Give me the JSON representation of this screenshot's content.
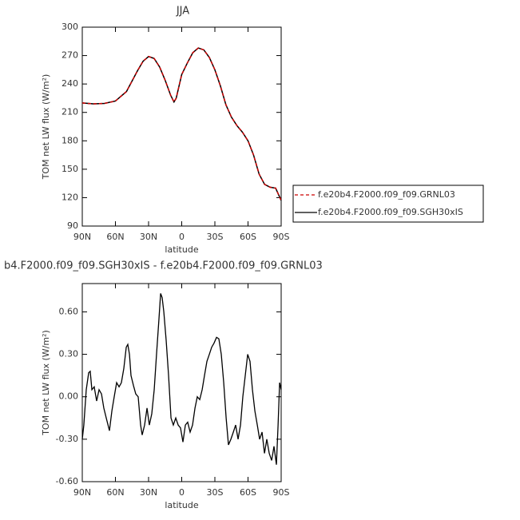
{
  "chart_data": [
    {
      "type": "line",
      "title": "JJA",
      "xlabel": "latitude",
      "ylabel": "TOM net LW flux (W/m²)",
      "xlim": [
        90,
        -90
      ],
      "xticks": [
        {
          "value": 90,
          "label": "90N"
        },
        {
          "value": 60,
          "label": "60N"
        },
        {
          "value": 30,
          "label": "30N"
        },
        0,
        {
          "value": -30,
          "label": "30S"
        },
        {
          "value": -60,
          "label": "60S"
        },
        {
          "value": -90,
          "label": "90S"
        }
      ],
      "ylim": [
        90,
        300
      ],
      "yticks": [
        90,
        120,
        150,
        180,
        210,
        240,
        270,
        300
      ],
      "x": [
        90,
        80,
        70,
        60,
        50,
        40,
        35,
        30,
        25,
        20,
        15,
        10,
        7,
        5,
        0,
        -5,
        -10,
        -15,
        -20,
        -25,
        -30,
        -35,
        -40,
        -45,
        -50,
        -55,
        -60,
        -65,
        -70,
        -75,
        -80,
        -85,
        -90
      ],
      "series": [
        {
          "name": "f.e20b4.F2000.f09_f09.GRNL03",
          "color": "#cc0000",
          "style": "dashed",
          "values": [
            220,
            219,
            219.5,
            222,
            232,
            254,
            264,
            269,
            267,
            258,
            244,
            228,
            221,
            225,
            250,
            262,
            273,
            278,
            276,
            268,
            255,
            238,
            218,
            205,
            196,
            189,
            180,
            165,
            145,
            134,
            131,
            130,
            117
          ]
        },
        {
          "name": "f.e20b4.F2000.f09_f09.SGH30xIS",
          "color": "#000000",
          "style": "solid",
          "values": [
            220,
            219,
            219.5,
            222,
            232,
            254,
            264,
            269,
            267,
            258,
            244,
            228,
            221,
            225,
            250,
            262,
            273,
            278,
            276,
            268,
            255,
            238,
            218,
            205,
            196,
            189,
            180,
            165,
            145,
            134,
            131,
            130,
            117
          ]
        }
      ],
      "legend": "right"
    },
    {
      "type": "line",
      "title": "b4.F2000.f09_f09.SGH30xIS - f.e20b4.F2000.f09_f09.GRNL03",
      "xlabel": "latitude",
      "ylabel": "TOM net LW flux (W/m²)",
      "xlim": [
        90,
        -90
      ],
      "xticks": [
        {
          "value": 90,
          "label": "90N"
        },
        {
          "value": 60,
          "label": "60N"
        },
        {
          "value": 30,
          "label": "30N"
        },
        0,
        {
          "value": -30,
          "label": "30S"
        },
        {
          "value": -60,
          "label": "60S"
        },
        {
          "value": -90,
          "label": "90S"
        }
      ],
      "ylim": [
        -0.6,
        0.8
      ],
      "yticks": [
        {
          "value": -0.6,
          "label": "-0.60"
        },
        {
          "value": -0.3,
          "label": "-0.30"
        },
        {
          "value": 0,
          "label": "0.00"
        },
        {
          "value": 0.3,
          "label": "0.30"
        },
        {
          "value": 0.6,
          "label": "0.60"
        }
      ],
      "color": "#000000",
      "x": [
        90,
        88.6,
        86.4,
        84.2,
        82.8,
        81.3,
        79.2,
        77,
        74.8,
        72.6,
        70.5,
        68.3,
        65.4,
        63.2,
        61.1,
        58.9,
        56.7,
        54.6,
        52.4,
        50.2,
        48.8,
        47.3,
        45.9,
        43.7,
        41.6,
        39.4,
        37.2,
        35.8,
        33.6,
        31.4,
        29.3,
        27.1,
        24.9,
        22.8,
        20.6,
        19.1,
        17.7,
        16.2,
        14.1,
        11.9,
        9.7,
        7.6,
        5.4,
        3.2,
        1.1,
        -1.1,
        -3.3,
        -5.4,
        -7.6,
        -9.8,
        -12,
        -14.1,
        -16.3,
        -18.5,
        -20.6,
        -22.8,
        -25,
        -27.1,
        -29.3,
        -31.5,
        -33.6,
        -35.8,
        -38,
        -40.2,
        -42.3,
        -44.5,
        -46.7,
        -48.8,
        -51,
        -53.2,
        -55.3,
        -57.5,
        -59.7,
        -61.8,
        -64,
        -66.2,
        -68.4,
        -70.5,
        -72.7,
        -74.9,
        -77,
        -79.2,
        -81.4,
        -83.5,
        -85.7,
        -87.2,
        -88.6,
        -90
      ],
      "values": [
        -0.3,
        -0.2,
        0.05,
        0.17,
        0.18,
        0.05,
        0.07,
        -0.03,
        0.05,
        0.02,
        -0.08,
        -0.15,
        -0.24,
        -0.1,
        0.0,
        0.1,
        0.07,
        0.1,
        0.2,
        0.35,
        0.37,
        0.3,
        0.15,
        0.08,
        0.02,
        0.0,
        -0.2,
        -0.27,
        -0.2,
        -0.08,
        -0.2,
        -0.12,
        0.05,
        0.3,
        0.55,
        0.73,
        0.7,
        0.6,
        0.4,
        0.15,
        -0.15,
        -0.2,
        -0.15,
        -0.2,
        -0.22,
        -0.32,
        -0.2,
        -0.18,
        -0.25,
        -0.2,
        -0.08,
        0.0,
        -0.02,
        0.05,
        0.15,
        0.25,
        0.3,
        0.35,
        0.38,
        0.42,
        0.41,
        0.3,
        0.1,
        -0.15,
        -0.34,
        -0.3,
        -0.25,
        -0.2,
        -0.3,
        -0.2,
        0.0,
        0.15,
        0.3,
        0.25,
        0.05,
        -0.1,
        -0.2,
        -0.3,
        -0.25,
        -0.4,
        -0.3,
        -0.4,
        -0.45,
        -0.35,
        -0.48,
        -0.2,
        0.1,
        0.05
      ]
    }
  ]
}
